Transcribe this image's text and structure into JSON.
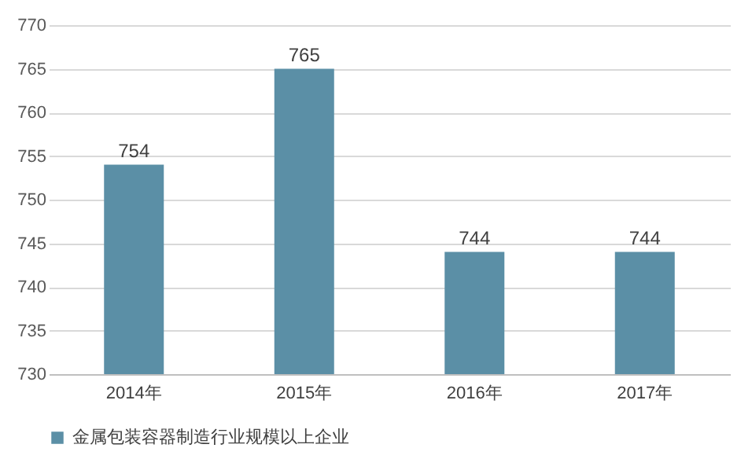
{
  "chart_data": {
    "type": "bar",
    "categories": [
      "2014年",
      "2015年",
      "2016年",
      "2017年"
    ],
    "series": [
      {
        "name": "金属包装容器制造行业规模以上企业",
        "color": "#5b8fa6",
        "values": [
          754,
          765,
          744,
          744
        ]
      }
    ],
    "ylim": [
      730,
      770
    ],
    "yticks": [
      730,
      735,
      740,
      745,
      750,
      755,
      760,
      765,
      770
    ],
    "grid": "y",
    "legend": "bottom",
    "data_labels": true
  }
}
